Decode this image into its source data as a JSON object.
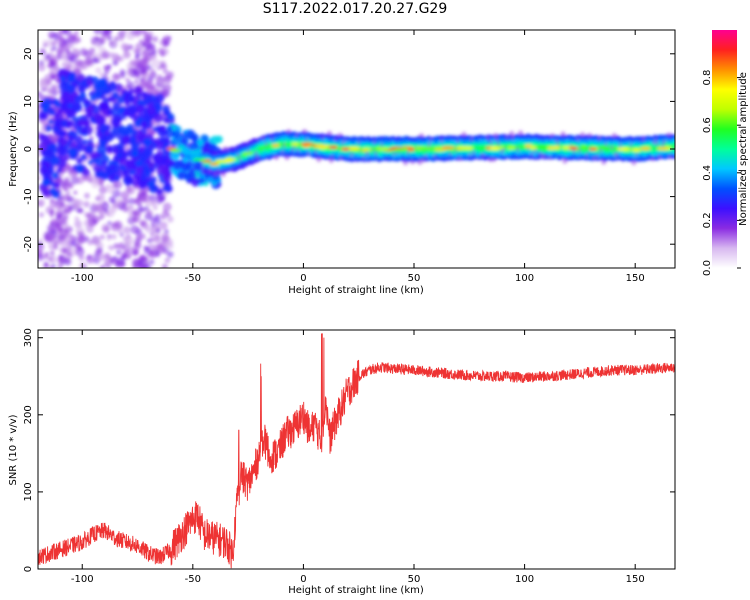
{
  "title": "S117.2022.017.20.27.G29",
  "chart_data": [
    {
      "type": "heatmap",
      "xlabel": "Height of straight line (km)",
      "ylabel": "Frequency (Hz)",
      "xlim": [
        -120,
        168
      ],
      "ylim": [
        -25,
        25
      ],
      "x_ticks": [
        -100,
        -50,
        0,
        50,
        100,
        150
      ],
      "y_ticks": [
        -20,
        -10,
        0,
        10,
        20
      ],
      "grid": false,
      "colorbar": {
        "label": "Normalized spectral amplitude",
        "range": [
          0,
          1
        ],
        "ticks": [
          "0.0",
          "0.2",
          "0.4",
          "0.6",
          "0.8"
        ],
        "colors": [
          "#ffffff",
          "#d8b8f0",
          "#8a2be2",
          "#3c10ff",
          "#0050ff",
          "#00c8ff",
          "#00ff9a",
          "#20ff20",
          "#c0ff00",
          "#ffff00",
          "#ff9000",
          "#ff2020",
          "#ff0090"
        ]
      },
      "description_trace": [
        {
          "x": -110,
          "y": 7
        },
        {
          "x": -100,
          "y": 5
        },
        {
          "x": -90,
          "y": 4
        },
        {
          "x": -80,
          "y": 3
        },
        {
          "x": -70,
          "y": 2
        },
        {
          "x": -60,
          "y": 0
        },
        {
          "x": -50,
          "y": -2
        },
        {
          "x": -40,
          "y": -3
        },
        {
          "x": -30,
          "y": -2
        },
        {
          "x": -20,
          "y": 0
        },
        {
          "x": -10,
          "y": 1
        },
        {
          "x": 0,
          "y": 1
        },
        {
          "x": 10,
          "y": 0.5
        },
        {
          "x": 20,
          "y": 0
        },
        {
          "x": 50,
          "y": 0
        },
        {
          "x": 100,
          "y": 0.5
        },
        {
          "x": 150,
          "y": 0
        },
        {
          "x": 168,
          "y": 0.5
        }
      ]
    },
    {
      "type": "line",
      "xlabel": "Height of straight line (km)",
      "ylabel": "SNR (10 * v/v)",
      "xlim": [
        -120,
        168
      ],
      "ylim": [
        0,
        310
      ],
      "x_ticks": [
        -100,
        -50,
        0,
        50,
        100,
        150
      ],
      "y_ticks": [
        0,
        100,
        200,
        300
      ],
      "grid": false,
      "series": [
        {
          "color": "#ee3333",
          "x": [
            -120,
            -110,
            -100,
            -95,
            -90,
            -85,
            -80,
            -75,
            -70,
            -65,
            -60,
            -55,
            -50,
            -48,
            -45,
            -40,
            -35,
            -32,
            -30,
            -28,
            -25,
            -22,
            -20,
            -18,
            -15,
            -12,
            -10,
            -8,
            -5,
            -2,
            0,
            3,
            5,
            8,
            10,
            12,
            15,
            18,
            20,
            25,
            30,
            35,
            40,
            50,
            60,
            70,
            80,
            90,
            100,
            110,
            120,
            130,
            140,
            150,
            160,
            168
          ],
          "y": [
            15,
            25,
            35,
            45,
            50,
            40,
            35,
            30,
            20,
            15,
            25,
            45,
            65,
            70,
            45,
            40,
            35,
            20,
            90,
            120,
            110,
            130,
            150,
            170,
            145,
            150,
            160,
            175,
            180,
            190,
            200,
            175,
            190,
            165,
            220,
            170,
            195,
            215,
            230,
            250,
            258,
            262,
            260,
            258,
            255,
            252,
            250,
            250,
            248,
            250,
            252,
            255,
            258,
            258,
            260,
            262
          ]
        }
      ]
    }
  ]
}
